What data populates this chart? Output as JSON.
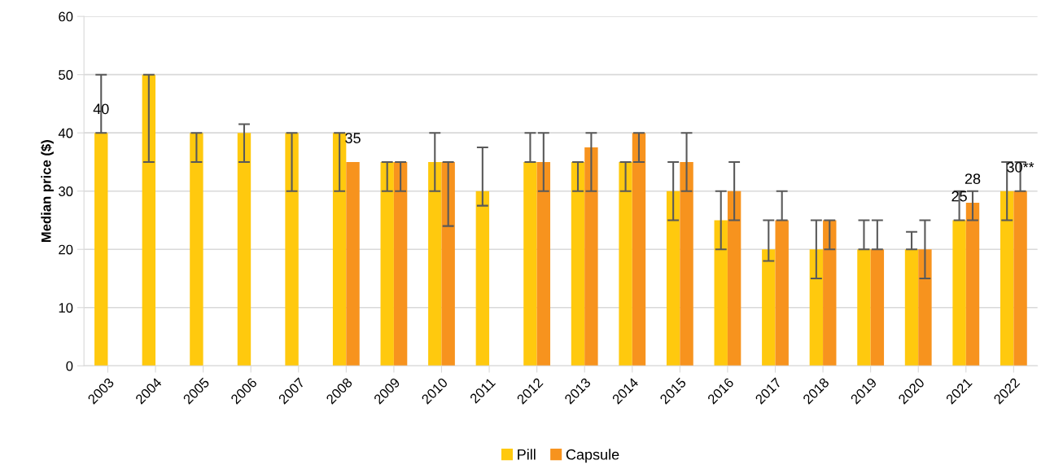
{
  "chart_data": {
    "type": "bar",
    "ylabel": "Median price ($)",
    "categories": [
      "2003",
      "2004",
      "2005",
      "2006",
      "2007",
      "2008",
      "2009",
      "2010",
      "2011",
      "2012",
      "2013",
      "2014",
      "2015",
      "2016",
      "2017",
      "2018",
      "2019",
      "2020",
      "2021",
      "2022"
    ],
    "series": [
      {
        "name": "Pill",
        "color": "#ffc90e",
        "values": [
          40,
          50,
          40,
          40,
          40,
          40,
          35,
          35,
          30,
          35,
          35,
          35,
          30,
          25,
          20,
          20,
          20,
          20,
          25,
          30
        ],
        "errors": [
          [
            40,
            50
          ],
          [
            35,
            50
          ],
          [
            35,
            40
          ],
          [
            35,
            41.5
          ],
          [
            30,
            40
          ],
          [
            30,
            40
          ],
          [
            30,
            35
          ],
          [
            30,
            40
          ],
          [
            27.5,
            37.5
          ],
          [
            35,
            40
          ],
          [
            30,
            35
          ],
          [
            30,
            35
          ],
          [
            25,
            35
          ],
          [
            20,
            30
          ],
          [
            18,
            25
          ],
          [
            15,
            25
          ],
          [
            20,
            25
          ],
          [
            20,
            23
          ],
          [
            25,
            30
          ],
          [
            25,
            35
          ]
        ],
        "value_labels": [
          "40",
          null,
          null,
          null,
          null,
          null,
          null,
          null,
          null,
          null,
          null,
          null,
          null,
          null,
          null,
          null,
          null,
          null,
          "25",
          null
        ]
      },
      {
        "name": "Capsule",
        "color": "#f7931e",
        "values": [
          null,
          null,
          null,
          null,
          null,
          35,
          35,
          35,
          null,
          35,
          37.5,
          40,
          35,
          30,
          25,
          25,
          20,
          20,
          28,
          30
        ],
        "errors": [
          null,
          null,
          null,
          null,
          null,
          null,
          [
            30,
            35
          ],
          [
            24,
            35
          ],
          null,
          [
            30,
            40
          ],
          [
            30,
            40
          ],
          [
            35,
            40
          ],
          [
            30,
            40
          ],
          [
            25,
            35
          ],
          [
            25,
            30
          ],
          [
            20,
            25
          ],
          [
            20,
            25
          ],
          [
            15,
            25
          ],
          [
            25,
            30
          ],
          [
            30,
            35
          ]
        ],
        "value_labels": [
          null,
          null,
          null,
          null,
          null,
          "35",
          null,
          null,
          null,
          null,
          null,
          null,
          null,
          null,
          null,
          null,
          null,
          null,
          "28",
          "30**"
        ]
      }
    ],
    "ylim": [
      0,
      60
    ],
    "yticks": [
      0,
      10,
      20,
      30,
      40,
      50,
      60
    ],
    "grid": "y",
    "legend": "bottom"
  }
}
